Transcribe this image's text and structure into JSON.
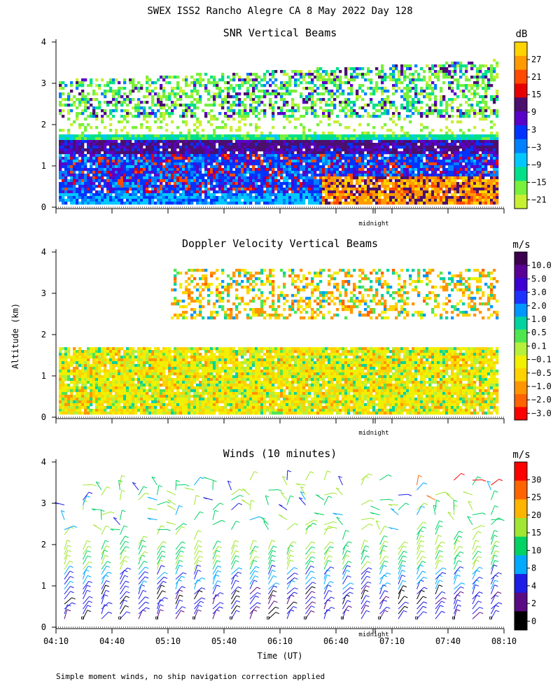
{
  "figure": {
    "title": "SWEX ISS2 Rancho Alegre CA   8 May 2022 Day 128",
    "ylabel": "Altitude (km)",
    "xlabel": "Time (UT)",
    "midnight_label": "midnight",
    "footnote": "Simple moment winds, no ship navigation correction applied"
  },
  "chart_data": [
    {
      "type": "heatmap",
      "title": "SNR Vertical Beams",
      "ylim": [
        0,
        4
      ],
      "yticks": [
        "0",
        "1",
        "2",
        "3",
        "4"
      ],
      "colorbar": {
        "unit": "dB",
        "labels": [
          "27",
          "21",
          "15",
          "9",
          "3",
          "−3",
          "−9",
          "−15",
          "−21"
        ],
        "colors": [
          "#ffd400",
          "#ff9b00",
          "#ff4a00",
          "#e60000",
          "#4b0f6e",
          "#5a00c8",
          "#0033ff",
          "#0080ff",
          "#00c8ff",
          "#00e08a",
          "#78f03c",
          "#c8f032"
        ]
      }
    },
    {
      "type": "heatmap",
      "title": "Doppler Velocity Vertical Beams",
      "ylim": [
        0,
        4
      ],
      "yticks": [
        "0",
        "1",
        "2",
        "3",
        "4"
      ],
      "colorbar": {
        "unit": "m/s",
        "labels": [
          "10.0",
          "5.0",
          "3.0",
          "2.0",
          "1.0",
          "0.5",
          "0.1",
          "−0.1",
          "−0.5",
          "−1.0",
          "−2.0",
          "−3.0"
        ],
        "colors": [
          "#3c0050",
          "#5a0096",
          "#3c00d2",
          "#1e32ff",
          "#0096ff",
          "#00d2a0",
          "#50e650",
          "#b4f03c",
          "#f0f000",
          "#ffd200",
          "#ff9600",
          "#ff6400",
          "#ff0000"
        ]
      }
    },
    {
      "type": "scatter",
      "title": "Winds (10 minutes)",
      "ylim": [
        0,
        4
      ],
      "yticks": [
        "0",
        "1",
        "2",
        "3",
        "4"
      ],
      "xticks": [
        "04:10",
        "04:40",
        "05:10",
        "05:40",
        "06:10",
        "06:40",
        "07:10",
        "07:40",
        "08:10"
      ],
      "colorbar": {
        "unit": "m/s",
        "labels": [
          "30",
          "25",
          "20",
          "15",
          "10",
          "8",
          "4",
          "2",
          "0"
        ],
        "colors": [
          "#ff0000",
          "#ff6400",
          "#ffb400",
          "#a0e632",
          "#00d264",
          "#00aaff",
          "#1e1ee6",
          "#5a0a82",
          "#000000"
        ]
      }
    }
  ]
}
